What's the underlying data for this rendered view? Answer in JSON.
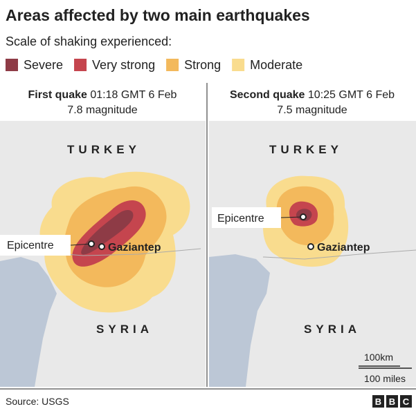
{
  "title": "Areas affected by two main earthquakes",
  "subtitle": "Scale of shaking experienced:",
  "legend": [
    {
      "label": "Severe",
      "color": "#8e3b46"
    },
    {
      "label": "Very strong",
      "color": "#c5454e"
    },
    {
      "label": "Strong",
      "color": "#f3b95c"
    },
    {
      "label": "Moderate",
      "color": "#f9dc8e"
    }
  ],
  "panels": [
    {
      "heading_bold": "First quake",
      "heading_time": "01:18 GMT 6 Feb",
      "magnitude": "7.8 magnitude",
      "country_north": "TURKEY",
      "country_south": "SYRIA",
      "epicentre": "Epicentre",
      "city": "Gaziantep"
    },
    {
      "heading_bold": "Second quake",
      "heading_time": "10:25 GMT 6 Feb",
      "magnitude": "7.5 magnitude",
      "country_north": "TURKEY",
      "country_south": "SYRIA",
      "epicentre": "Epicentre",
      "city": "Gaziantep"
    }
  ],
  "scale": {
    "km": "100km",
    "miles": "100 miles"
  },
  "source": "Source: USGS",
  "logo": [
    "B",
    "B",
    "C"
  ]
}
